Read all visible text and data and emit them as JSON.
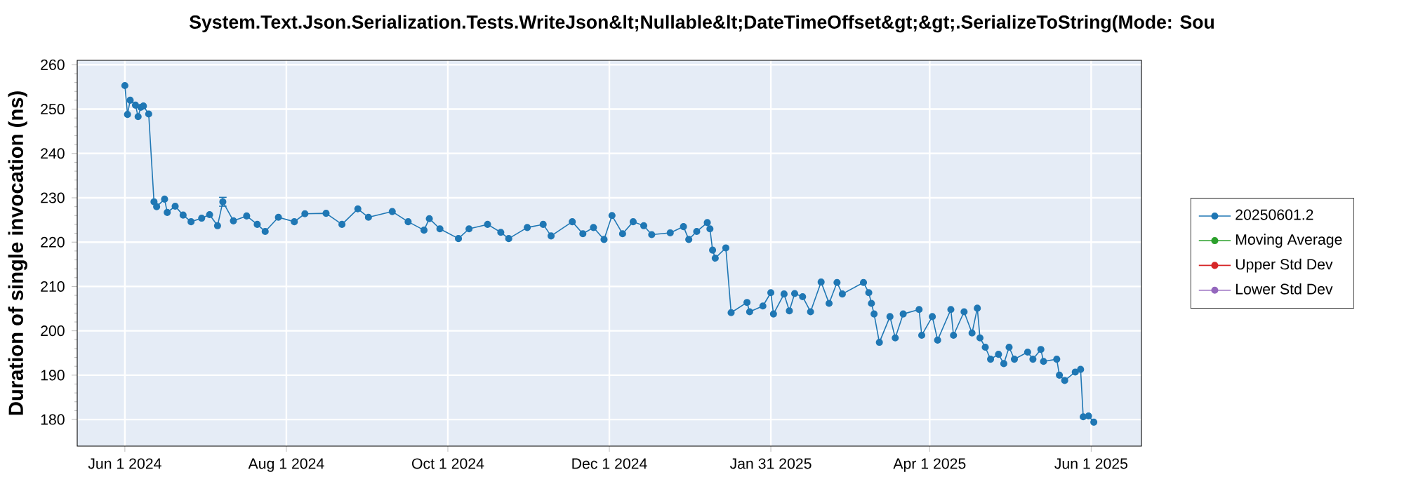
{
  "chart_data": {
    "type": "line",
    "title": "System.Text.Json.Serialization.Tests.WriteJson&lt;Nullable&lt;DateTimeOffset&gt;&gt;.SerializeToString(Mode: Sou",
    "ylabel": "Duration of single invocation (ns)",
    "x": [
      "2024-06-01",
      "2024-06-02",
      "2024-06-03",
      "2024-06-05",
      "2024-06-06",
      "2024-06-07",
      "2024-06-08",
      "2024-06-10",
      "2024-06-12",
      "2024-06-13",
      "2024-06-16",
      "2024-06-17",
      "2024-06-20",
      "2024-06-23",
      "2024-06-26",
      "2024-06-30",
      "2024-07-03",
      "2024-07-06",
      "2024-07-08",
      "2024-07-12",
      "2024-07-17",
      "2024-07-21",
      "2024-07-24",
      "2024-07-29",
      "2024-08-04",
      "2024-08-08",
      "2024-08-16",
      "2024-08-22",
      "2024-08-28",
      "2024-09-01",
      "2024-09-10",
      "2024-09-16",
      "2024-09-22",
      "2024-09-24",
      "2024-09-28",
      "2024-10-05",
      "2024-10-09",
      "2024-10-16",
      "2024-10-21",
      "2024-10-24",
      "2024-10-31",
      "2024-11-06",
      "2024-11-09",
      "2024-11-17",
      "2024-11-21",
      "2024-11-25",
      "2024-11-29",
      "2024-12-02",
      "2024-12-06",
      "2024-12-10",
      "2024-12-14",
      "2024-12-17",
      "2024-12-24",
      "2024-12-29",
      "2024-12-31",
      "2025-01-03",
      "2025-01-07",
      "2025-01-08",
      "2025-01-09",
      "2025-01-10",
      "2025-01-14",
      "2025-01-16",
      "2025-01-22",
      "2025-01-23",
      "2025-01-28",
      "2025-01-31",
      "2025-02-01",
      "2025-02-05",
      "2025-02-07",
      "2025-02-09",
      "2025-02-12",
      "2025-02-15",
      "2025-02-19",
      "2025-02-22",
      "2025-02-25",
      "2025-02-27",
      "2025-03-07",
      "2025-03-09",
      "2025-03-10",
      "2025-03-11",
      "2025-03-13",
      "2025-03-17",
      "2025-03-19",
      "2025-03-22",
      "2025-03-28",
      "2025-03-29",
      "2025-04-02",
      "2025-04-04",
      "2025-04-09",
      "2025-04-10",
      "2025-04-14",
      "2025-04-17",
      "2025-04-19",
      "2025-04-20",
      "2025-04-22",
      "2025-04-24",
      "2025-04-27",
      "2025-04-29",
      "2025-05-01",
      "2025-05-03",
      "2025-05-08",
      "2025-05-10",
      "2025-05-13",
      "2025-05-14",
      "2025-05-19",
      "2025-05-20",
      "2025-05-22",
      "2025-05-26",
      "2025-05-28",
      "2025-05-29",
      "2025-05-31",
      "2025-06-02"
    ],
    "series": [
      {
        "name": "20250601.2",
        "color": "#1f77b4",
        "values": [
          255.3,
          248.8,
          252,
          250.9,
          248.3,
          250.4,
          250.7,
          248.9,
          229.1,
          228,
          229.7,
          226.7,
          228.1,
          226.1,
          224.6,
          225.4,
          226.2,
          223.7,
          229.1,
          224.8,
          225.9,
          224,
          222.4,
          225.6,
          224.6,
          226.4,
          226.5,
          224,
          227.5,
          225.6,
          226.9,
          224.6,
          222.7,
          225.3,
          223,
          220.8,
          223,
          224,
          222.2,
          220.8,
          223.3,
          224,
          221.4,
          224.6,
          221.9,
          223.3,
          220.6,
          226,
          221.9,
          224.6,
          223.7,
          221.7,
          222.1,
          223.5,
          220.6,
          222.4,
          224.4,
          223,
          218.2,
          216.4,
          218.7,
          204.1,
          206.4,
          204.3,
          205.6,
          208.6,
          203.8,
          208.3,
          204.5,
          208.4,
          207.7,
          204.3,
          211,
          206.2,
          210.9,
          208.3,
          210.9,
          208.6,
          206.2,
          203.8,
          197.4,
          203.2,
          198.4,
          203.8,
          204.8,
          199,
          203.2,
          197.9,
          204.8,
          199,
          204.3,
          199.5,
          205.1,
          198.4,
          196.3,
          193.6,
          194.7,
          192.6,
          196.3,
          193.6,
          195.2,
          193.6,
          195.8,
          193.1,
          193.6,
          190,
          188.8,
          190.7,
          191.3,
          180.6,
          180.8,
          179.4
        ],
        "errors": [
          null,
          null,
          null,
          null,
          null,
          null,
          null,
          null,
          null,
          null,
          null,
          null,
          null,
          null,
          null,
          null,
          null,
          null,
          1,
          null,
          null,
          null,
          null,
          null,
          null,
          null,
          null,
          null,
          null,
          null,
          null,
          null,
          null,
          null,
          null,
          null,
          null,
          null,
          null,
          null,
          null,
          null,
          null,
          null,
          null,
          null,
          null,
          null,
          null,
          null,
          null,
          null,
          null,
          null,
          null,
          null,
          null,
          null,
          null,
          null,
          null,
          null,
          null,
          null,
          null,
          null,
          null,
          null,
          null,
          null,
          null,
          null,
          null,
          null,
          null,
          null,
          null,
          null,
          null,
          null,
          null,
          null,
          null,
          null,
          null,
          null,
          null,
          null,
          null,
          null,
          null,
          null,
          null,
          null,
          null,
          null,
          null,
          null,
          null,
          null,
          null,
          null,
          null,
          null,
          null,
          null,
          null,
          null,
          null,
          null,
          null,
          null
        ]
      },
      {
        "name": "Moving Average",
        "color": "#2ca02c",
        "values": [
          null,
          null,
          null,
          null,
          null,
          null,
          null,
          null,
          null,
          null,
          null,
          null,
          null,
          null,
          null,
          null,
          null,
          null,
          null,
          null,
          null,
          null,
          null,
          null,
          null,
          null,
          null,
          null,
          null,
          null,
          null,
          null,
          null,
          null,
          null,
          null,
          null,
          null,
          null,
          null,
          null,
          null,
          null,
          null,
          null,
          null,
          null,
          null,
          null,
          null,
          null,
          null,
          null,
          null,
          null,
          null,
          null,
          null,
          null,
          null,
          null,
          null,
          null,
          null,
          null,
          null,
          null,
          null,
          null,
          null,
          null,
          null,
          null,
          null,
          null,
          null,
          null,
          null,
          null,
          null,
          null,
          null,
          null,
          null,
          null,
          null,
          null,
          null,
          null,
          null,
          null,
          null,
          null,
          null,
          null,
          null,
          null,
          null,
          null,
          null,
          null,
          null,
          null,
          null,
          null,
          null,
          null,
          null,
          null,
          null,
          null,
          null
        ]
      },
      {
        "name": "Upper Std Dev",
        "color": "#d62728",
        "values": [
          null,
          null,
          null,
          null,
          null,
          null,
          null,
          null,
          null,
          null,
          null,
          null,
          null,
          null,
          null,
          null,
          null,
          null,
          null,
          null,
          null,
          null,
          null,
          null,
          null,
          null,
          null,
          null,
          null,
          null,
          null,
          null,
          null,
          null,
          null,
          null,
          null,
          null,
          null,
          null,
          null,
          null,
          null,
          null,
          null,
          null,
          null,
          null,
          null,
          null,
          null,
          null,
          null,
          null,
          null,
          null,
          null,
          null,
          null,
          null,
          null,
          null,
          null,
          null,
          null,
          null,
          null,
          null,
          null,
          null,
          null,
          null,
          null,
          null,
          null,
          null,
          null,
          null,
          null,
          null,
          null,
          null,
          null,
          null,
          null,
          null,
          null,
          null,
          null,
          null,
          null,
          null,
          null,
          null,
          null,
          null,
          null,
          null,
          null,
          null,
          null,
          null,
          null,
          null,
          null,
          null,
          null,
          null,
          null,
          null,
          null,
          null
        ]
      },
      {
        "name": "Lower Std Dev",
        "color": "#9467bd",
        "values": [
          null,
          null,
          null,
          null,
          null,
          null,
          null,
          null,
          null,
          null,
          null,
          null,
          null,
          null,
          null,
          null,
          null,
          null,
          null,
          null,
          null,
          null,
          null,
          null,
          null,
          null,
          null,
          null,
          null,
          null,
          null,
          null,
          null,
          null,
          null,
          null,
          null,
          null,
          null,
          null,
          null,
          null,
          null,
          null,
          null,
          null,
          null,
          null,
          null,
          null,
          null,
          null,
          null,
          null,
          null,
          null,
          null,
          null,
          null,
          null,
          null,
          null,
          null,
          null,
          null,
          null,
          null,
          null,
          null,
          null,
          null,
          null,
          null,
          null,
          null,
          null,
          null,
          null,
          null,
          null,
          null,
          null,
          null,
          null,
          null,
          null,
          null,
          null,
          null,
          null,
          null,
          null,
          null,
          null,
          null,
          null,
          null,
          null,
          null,
          null,
          null,
          null,
          null,
          null,
          null,
          null,
          null,
          null,
          null,
          null,
          null,
          null
        ]
      }
    ],
    "xlim": [
      "2024-05-14",
      "2025-06-20"
    ],
    "xticks": [
      {
        "value": "2024-06-01",
        "label": "Jun 1 2024"
      },
      {
        "value": "2024-08-01",
        "label": "Aug 1 2024"
      },
      {
        "value": "2024-10-01",
        "label": "Oct 1 2024"
      },
      {
        "value": "2024-12-01",
        "label": "Dec 1 2024"
      },
      {
        "value": "2025-01-31",
        "label": "Jan 31 2025"
      },
      {
        "value": "2025-04-01",
        "label": "Apr 1 2025"
      },
      {
        "value": "2025-06-01",
        "label": "Jun 1 2025"
      }
    ],
    "ylim": [
      174,
      261
    ],
    "yticks": [
      180,
      190,
      200,
      210,
      220,
      230,
      240,
      250,
      260
    ],
    "grid": true,
    "legend": "right",
    "marker": "circle",
    "line_style": "solid"
  }
}
